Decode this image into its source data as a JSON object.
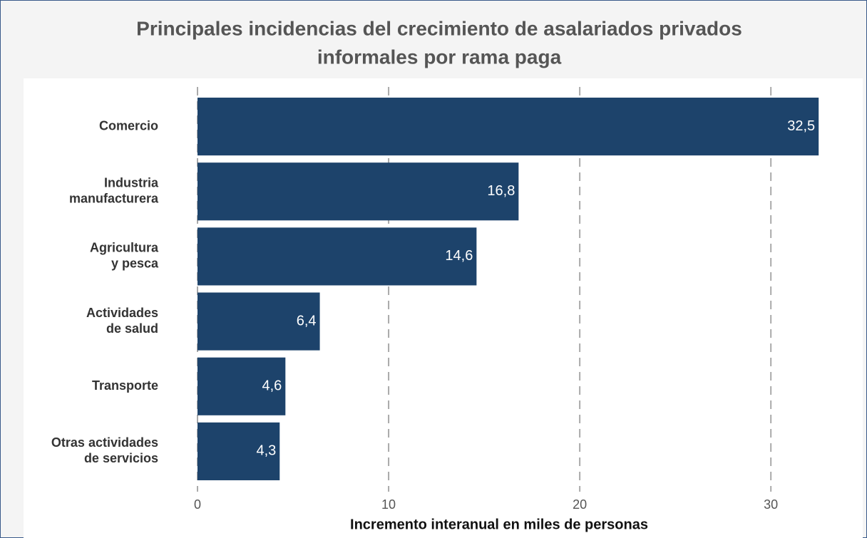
{
  "chart_data": {
    "type": "bar",
    "orientation": "horizontal",
    "title": [
      "Principales incidencias del crecimiento de asalariados privados",
      "informales por rama paga"
    ],
    "categories": [
      [
        "Comercio"
      ],
      [
        "Industria",
        "manufacturera"
      ],
      [
        "Agricultura",
        "y pesca"
      ],
      [
        "Actividades",
        "de salud"
      ],
      [
        "Transporte"
      ],
      [
        "Otras actividades",
        "de servicios"
      ]
    ],
    "values": [
      32.5,
      16.8,
      14.6,
      6.4,
      4.6,
      4.3
    ],
    "value_labels": [
      "32,5",
      "16,8",
      "14,6",
      "6,4",
      "4,6",
      "4,3"
    ],
    "color": "#1d436b",
    "xlabel": "Incremento interanual en miles de personas",
    "xlim": [
      0,
      33.5
    ],
    "xticks": [
      0,
      10,
      20,
      30
    ],
    "grid": true
  }
}
